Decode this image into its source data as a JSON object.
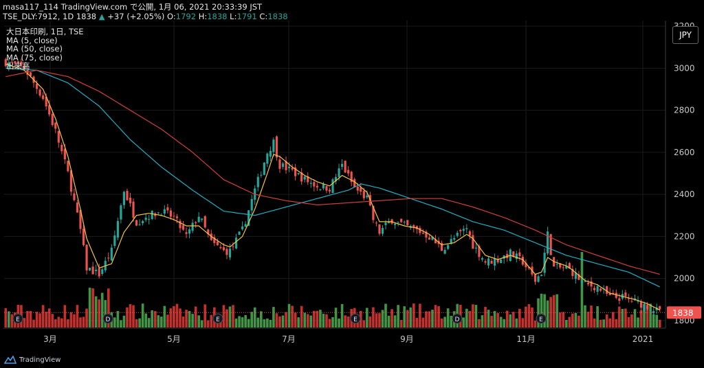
{
  "header": {
    "line1": "masa117_114 TradingView.com で公開, 1月 06, 2021 20:33:39 JST",
    "symbol": "TSE_DLY:7912, 1D 1838",
    "change": "+37 (+2.05%)",
    "ohlc": {
      "o_label": "O:",
      "o": "1792",
      "h_label": "H:",
      "h": "1838",
      "l_label": "L:",
      "l": "1791",
      "c_label": "C:",
      "c": "1838"
    }
  },
  "legend": {
    "title": "大日本印刷, 1日, TSE",
    "ma5": "MA (5, close)",
    "ma50": "MA (50, close)",
    "ma75": "MA (75, close)",
    "volume": "出来高"
  },
  "currency_button": "JPY",
  "branding": "TradingView",
  "colors": {
    "up": "#26a69a",
    "down": "#ef5350",
    "ma5": "#f5c542",
    "ma50": "#1fb1c4",
    "ma75": "#d2403a",
    "vol_up": "#4caf50",
    "vol_down": "#e53935",
    "grid": "#1b1b1b",
    "axis_text": "#c8c8c8",
    "last_price_bg": "#ef5350"
  },
  "chart_data": {
    "type": "candlestick",
    "x_tick_labels": [
      "3月",
      "5月",
      "7月",
      "9月",
      "11月",
      "2021"
    ],
    "y_tick_labels": [
      "1800",
      "2000",
      "2200",
      "2400",
      "2600",
      "2800",
      "3000",
      "3200"
    ],
    "y_range": [
      1780,
      3210
    ],
    "last_price": "1838",
    "event_markers": [
      "E",
      "D",
      "E",
      "E",
      "D",
      "E"
    ],
    "close_path": [
      [
        0,
        3030
      ],
      [
        6,
        3000
      ],
      [
        12,
        2860
      ],
      [
        16,
        2700
      ],
      [
        20,
        2500
      ],
      [
        24,
        2230
      ],
      [
        26,
        2050
      ],
      [
        30,
        2020
      ],
      [
        34,
        2130
      ],
      [
        38,
        2420
      ],
      [
        42,
        2270
      ],
      [
        46,
        2300
      ],
      [
        50,
        2320
      ],
      [
        54,
        2290
      ],
      [
        58,
        2200
      ],
      [
        62,
        2300
      ],
      [
        66,
        2170
      ],
      [
        70,
        2130
      ],
      [
        72,
        2130
      ],
      [
        76,
        2230
      ],
      [
        80,
        2420
      ],
      [
        84,
        2600
      ],
      [
        86,
        2650
      ],
      [
        88,
        2540
      ],
      [
        92,
        2510
      ],
      [
        96,
        2470
      ],
      [
        100,
        2440
      ],
      [
        104,
        2430
      ],
      [
        108,
        2540
      ],
      [
        112,
        2430
      ],
      [
        116,
        2380
      ],
      [
        118,
        2280
      ],
      [
        120,
        2220
      ],
      [
        124,
        2280
      ],
      [
        128,
        2250
      ],
      [
        132,
        2230
      ],
      [
        136,
        2200
      ],
      [
        140,
        2140
      ],
      [
        144,
        2190
      ],
      [
        148,
        2240
      ],
      [
        150,
        2160
      ],
      [
        154,
        2080
      ],
      [
        158,
        2090
      ],
      [
        162,
        2120
      ],
      [
        166,
        2080
      ],
      [
        170,
        1990
      ],
      [
        172,
        2030
      ],
      [
        174,
        2210
      ],
      [
        176,
        2050
      ],
      [
        180,
        2050
      ],
      [
        182,
        2030
      ],
      [
        186,
        1970
      ],
      [
        190,
        1960
      ],
      [
        194,
        1910
      ],
      [
        198,
        1910
      ],
      [
        202,
        1890
      ],
      [
        206,
        1870
      ],
      [
        210,
        1838
      ]
    ],
    "ma5_path": [
      [
        0,
        3020
      ],
      [
        6,
        2990
      ],
      [
        12,
        2900
      ],
      [
        16,
        2760
      ],
      [
        20,
        2580
      ],
      [
        24,
        2330
      ],
      [
        26,
        2190
      ],
      [
        30,
        2050
      ],
      [
        34,
        2070
      ],
      [
        38,
        2220
      ],
      [
        42,
        2300
      ],
      [
        46,
        2310
      ],
      [
        50,
        2300
      ],
      [
        54,
        2280
      ],
      [
        58,
        2250
      ],
      [
        62,
        2250
      ],
      [
        66,
        2200
      ],
      [
        70,
        2160
      ],
      [
        72,
        2150
      ],
      [
        76,
        2200
      ],
      [
        80,
        2330
      ],
      [
        84,
        2500
      ],
      [
        86,
        2590
      ],
      [
        88,
        2580
      ],
      [
        92,
        2530
      ],
      [
        96,
        2490
      ],
      [
        100,
        2460
      ],
      [
        104,
        2440
      ],
      [
        108,
        2490
      ],
      [
        112,
        2460
      ],
      [
        116,
        2410
      ],
      [
        118,
        2340
      ],
      [
        120,
        2270
      ],
      [
        124,
        2270
      ],
      [
        128,
        2250
      ],
      [
        132,
        2240
      ],
      [
        136,
        2210
      ],
      [
        140,
        2160
      ],
      [
        144,
        2170
      ],
      [
        148,
        2210
      ],
      [
        150,
        2190
      ],
      [
        154,
        2110
      ],
      [
        158,
        2090
      ],
      [
        162,
        2110
      ],
      [
        166,
        2090
      ],
      [
        170,
        2020
      ],
      [
        172,
        2030
      ],
      [
        174,
        2100
      ],
      [
        176,
        2080
      ],
      [
        180,
        2060
      ],
      [
        182,
        2040
      ],
      [
        186,
        1990
      ],
      [
        190,
        1970
      ],
      [
        194,
        1930
      ],
      [
        198,
        1915
      ],
      [
        202,
        1900
      ],
      [
        206,
        1880
      ],
      [
        210,
        1850
      ]
    ],
    "ma50_path": [
      [
        0,
        3000
      ],
      [
        10,
        2990
      ],
      [
        20,
        2930
      ],
      [
        30,
        2820
      ],
      [
        40,
        2660
      ],
      [
        50,
        2530
      ],
      [
        60,
        2420
      ],
      [
        70,
        2320
      ],
      [
        80,
        2300
      ],
      [
        90,
        2340
      ],
      [
        100,
        2380
      ],
      [
        110,
        2420
      ],
      [
        114,
        2450
      ],
      [
        120,
        2430
      ],
      [
        130,
        2380
      ],
      [
        140,
        2330
      ],
      [
        150,
        2270
      ],
      [
        160,
        2230
      ],
      [
        170,
        2170
      ],
      [
        180,
        2110
      ],
      [
        190,
        2070
      ],
      [
        200,
        2030
      ],
      [
        210,
        1960
      ]
    ],
    "ma75_path": [
      [
        0,
        2960
      ],
      [
        10,
        2990
      ],
      [
        20,
        2960
      ],
      [
        30,
        2890
      ],
      [
        40,
        2800
      ],
      [
        50,
        2710
      ],
      [
        60,
        2600
      ],
      [
        70,
        2470
      ],
      [
        80,
        2400
      ],
      [
        90,
        2370
      ],
      [
        100,
        2350
      ],
      [
        110,
        2360
      ],
      [
        120,
        2370
      ],
      [
        130,
        2380
      ],
      [
        140,
        2380
      ],
      [
        150,
        2340
      ],
      [
        160,
        2290
      ],
      [
        170,
        2230
      ],
      [
        180,
        2160
      ],
      [
        190,
        2110
      ],
      [
        200,
        2060
      ],
      [
        210,
        2020
      ]
    ]
  }
}
